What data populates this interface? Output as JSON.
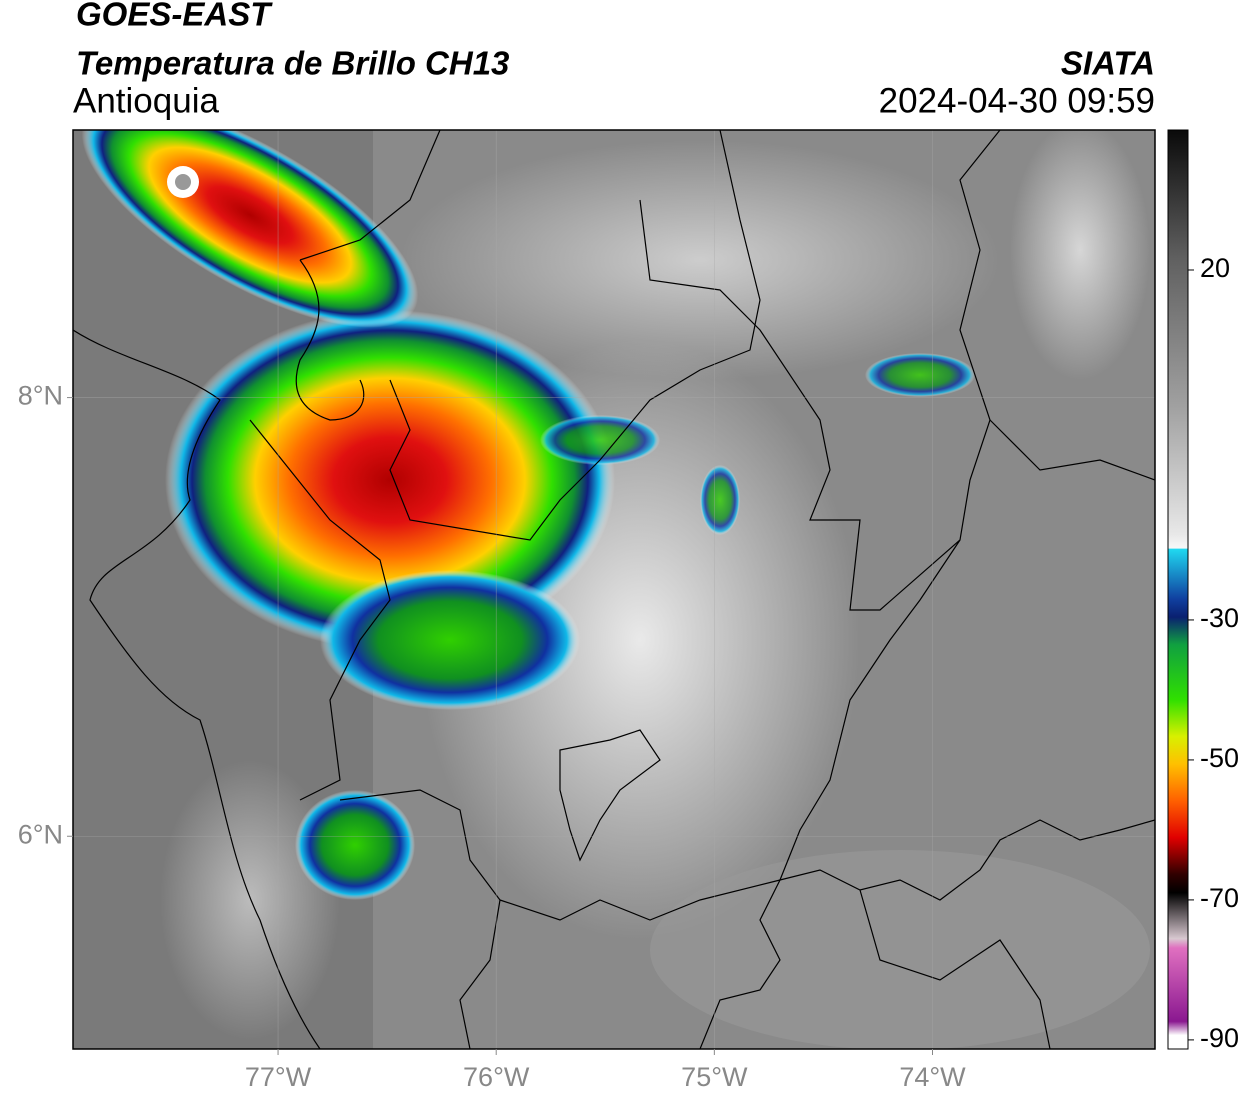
{
  "header": {
    "title": "GOES-EAST",
    "subtitle": "Temperatura de Brillo CH13",
    "region": "Antioquia",
    "source": "SIATA",
    "datetime": "2024-04-30 09:59"
  },
  "map": {
    "lonlim": [
      -77.94,
      -72.98
    ],
    "latlim": [
      5.03,
      9.22
    ],
    "lon_ticks": [
      {
        "value": -77,
        "label": "77°W"
      },
      {
        "value": -76,
        "label": "76°W"
      },
      {
        "value": -75,
        "label": "75°W"
      },
      {
        "value": -74,
        "label": "74°W"
      }
    ],
    "lat_ticks": [
      {
        "value": 8,
        "label": "8°N"
      },
      {
        "value": 6,
        "label": "6°N"
      }
    ],
    "grid": true
  },
  "colorbar": {
    "lim": [
      -91.3,
      40
    ],
    "ticks": [
      20,
      -30,
      -50,
      -70,
      -90
    ]
  }
}
